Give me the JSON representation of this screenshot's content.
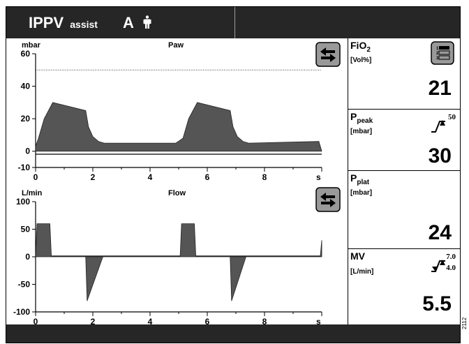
{
  "header": {
    "mode": "IPPV",
    "mode_sub": "assist",
    "patient_letter": "A",
    "patient_icon": "adult-person-icon"
  },
  "paw_chart": {
    "unit": "mbar",
    "title": "Paw",
    "y_ticks": [
      "60",
      "40",
      "20",
      "0",
      "-10"
    ],
    "x_ticks": [
      "0",
      "2",
      "4",
      "6",
      "8"
    ],
    "x_unit": "s"
  },
  "flow_chart": {
    "unit": "L/min",
    "title": "Flow",
    "y_ticks": [
      "100",
      "50",
      "0",
      "-50",
      "-100"
    ],
    "x_ticks": [
      "0",
      "2",
      "4",
      "6",
      "8"
    ],
    "x_unit": "s"
  },
  "params": {
    "fio2": {
      "label": "FiO",
      "label_sub": "2",
      "unit": "[Vol%]",
      "value": "21",
      "icon": "list-select-icon"
    },
    "ppeak": {
      "label": "P",
      "label_sub": "peak",
      "unit": "[mbar]",
      "value": "30",
      "limit_high": "50",
      "icon": "upper-alarm-limit-icon"
    },
    "pplat": {
      "label": "P",
      "label_sub": "plat",
      "unit": "[mbar]",
      "value": "24"
    },
    "mv": {
      "label": "MV",
      "unit": "[L/min]",
      "value": "5.5",
      "limit_high": "7.0",
      "limit_low": "4.0",
      "icon": "alarm-limits-icon"
    }
  },
  "footer": {
    "side_code": "2112"
  },
  "chart_data": [
    {
      "type": "area",
      "title": "Paw",
      "ylabel": "mbar",
      "xlabel": "s",
      "xlim": [
        0,
        10
      ],
      "ylim": [
        -10,
        60
      ],
      "reference_line": 50,
      "series": [
        {
          "x": [
            0,
            0.1,
            0.3,
            0.45,
            0.6,
            1.75,
            1.85,
            2.0,
            2.2,
            2.4,
            4.9,
            5.15,
            5.35,
            5.5,
            5.65,
            6.8,
            6.9,
            7.05,
            7.25,
            7.45,
            9.9,
            10
          ],
          "y": [
            3,
            8,
            20,
            25,
            30,
            25,
            15,
            9,
            6,
            5,
            5,
            8,
            20,
            25,
            30,
            25,
            15,
            9,
            6,
            5,
            6,
            0
          ]
        }
      ]
    },
    {
      "type": "area",
      "title": "Flow",
      "ylabel": "L/min",
      "xlabel": "s",
      "xlim": [
        0,
        10
      ],
      "ylim": [
        -100,
        100
      ],
      "series": [
        {
          "x": [
            0,
            0.05,
            0.5,
            0.55,
            1.75,
            1.8,
            2.35,
            2.4,
            5.05,
            5.1,
            5.55,
            5.6,
            6.8,
            6.85,
            7.35,
            7.4,
            9.95,
            10
          ],
          "y": [
            0,
            60,
            60,
            0,
            0,
            -80,
            0,
            0,
            0,
            60,
            60,
            0,
            0,
            -80,
            0,
            0,
            0,
            30
          ]
        }
      ]
    }
  ]
}
